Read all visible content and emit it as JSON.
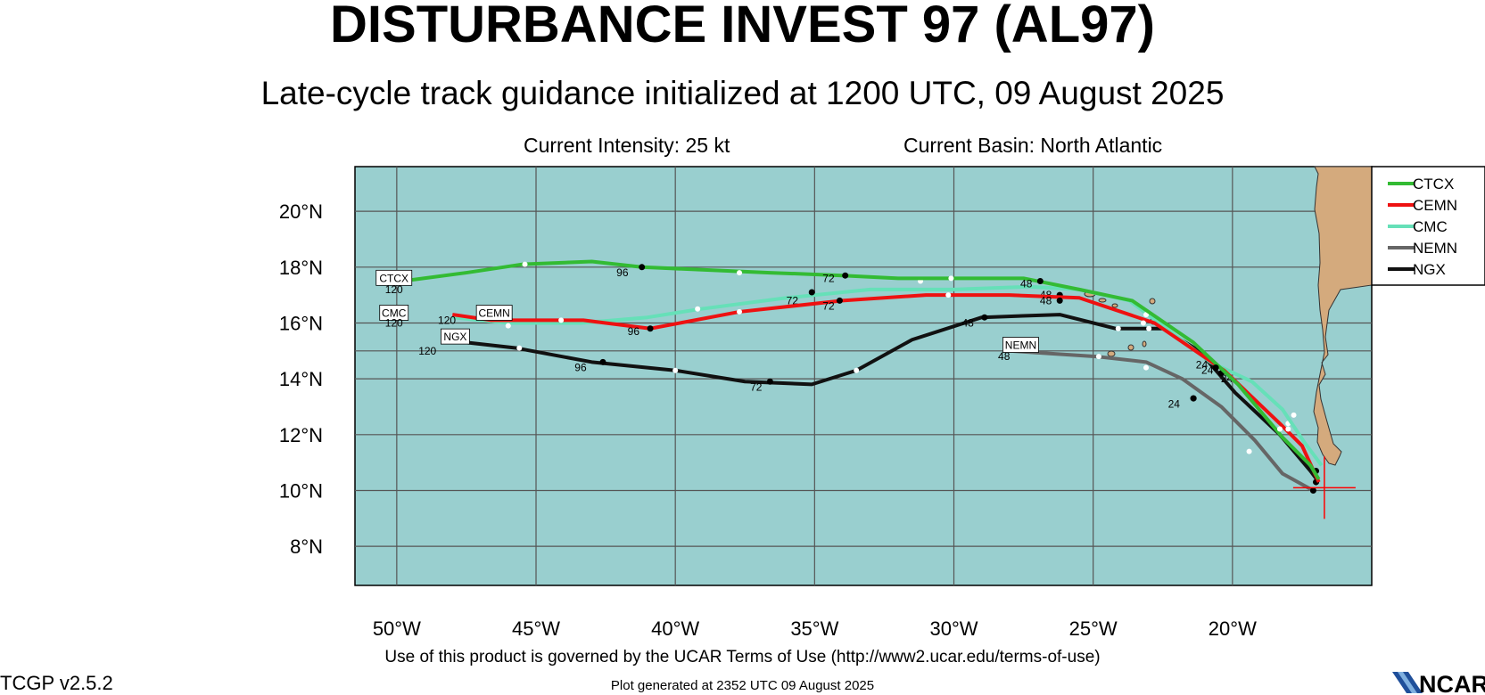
{
  "header": {
    "title": "DISTURBANCE INVEST 97 (AL97)",
    "subtitle": "Late-cycle track guidance initialized at 1200 UTC, 09 August 2025",
    "intensity": "Current Intensity: 25 kt",
    "basin": "Current Basin: North Atlantic"
  },
  "footer": {
    "terms": "Use of this product is governed by the UCAR Terms of Use (http://www2.ucar.edu/terms-of-use)",
    "generated": "Plot generated at 2352 UTC   09 August 2025",
    "version": "TCGP v2.5.2",
    "logo_text": "NCAR"
  },
  "colors": {
    "ocean": "#99cfcf",
    "land": "#d4aa7d",
    "grid": "#555555",
    "current_position_marker": "#ff0000"
  },
  "chart_data": {
    "type": "line",
    "map": true,
    "xlim": [
      -51.5,
      -15
    ],
    "ylim": [
      6.6,
      21.6
    ],
    "x_ticks": [
      -50,
      -45,
      -40,
      -35,
      -30,
      -25,
      -20
    ],
    "x_tick_labels": [
      "50°W",
      "45°W",
      "40°W",
      "35°W",
      "30°W",
      "25°W",
      "20°W"
    ],
    "y_ticks": [
      8,
      10,
      12,
      14,
      16,
      18,
      20
    ],
    "y_tick_labels": [
      "8°N",
      "10°N",
      "12°N",
      "14°N",
      "16°N",
      "18°N",
      "20°N"
    ],
    "grid": true,
    "legend_position": "top-right, outside plot",
    "current_position": {
      "lon": -16.7,
      "lat": 10.1
    },
    "series": [
      {
        "name": "CTCX",
        "color": "#33bb33",
        "track": [
          [
            -16.9,
            10.4
          ],
          [
            -17.2,
            10.9
          ],
          [
            -18.2,
            11.9
          ],
          [
            -19.8,
            13.8
          ],
          [
            -21.4,
            15.3
          ],
          [
            -23.6,
            16.8
          ],
          [
            -25.5,
            17.2
          ],
          [
            -27.5,
            17.6
          ],
          [
            -30,
            17.6
          ],
          [
            -32,
            17.6
          ],
          [
            -34,
            17.7
          ],
          [
            -36.6,
            17.8
          ],
          [
            -41.2,
            18.0
          ],
          [
            -43,
            18.2
          ],
          [
            -45.5,
            18.1
          ],
          [
            -47.5,
            17.8
          ],
          [
            -49.8,
            17.5
          ]
        ],
        "labels": [
          {
            "text": "CTCX",
            "lon": -50.1,
            "lat": 17.6,
            "box": true
          },
          {
            "text": "120",
            "lon": -50.1,
            "lat": 17.2
          },
          {
            "text": "96",
            "lon": -41.9,
            "lat": 17.8
          },
          {
            "text": "72",
            "lon": -34.5,
            "lat": 17.6
          },
          {
            "text": "48",
            "lon": -27.4,
            "lat": 17.4
          },
          {
            "text": "24",
            "lon": -21.1,
            "lat": 14.5
          }
        ],
        "daily_points": [
          [
            -41.2,
            18.0
          ],
          [
            -33.9,
            17.7
          ],
          [
            -26.9,
            17.5
          ],
          [
            -20.6,
            14.4
          ]
        ],
        "half_day_points": [
          [
            -45.4,
            18.1
          ],
          [
            -37.7,
            17.8
          ],
          [
            -30.1,
            17.6
          ],
          [
            -23.2,
            16.0
          ],
          [
            -18.3,
            12.2
          ]
        ]
      },
      {
        "name": "CEMN",
        "color": "#ee1111",
        "track": [
          [
            -16.9,
            10.3
          ],
          [
            -17.5,
            11.6
          ],
          [
            -18.3,
            12.4
          ],
          [
            -20.3,
            14.3
          ],
          [
            -22.8,
            16.0
          ],
          [
            -25.5,
            16.9
          ],
          [
            -28,
            17.0
          ],
          [
            -31,
            17.0
          ],
          [
            -34,
            16.8
          ],
          [
            -37.7,
            16.4
          ],
          [
            -40.9,
            15.8
          ],
          [
            -43.3,
            16.1
          ],
          [
            -46.6,
            16.1
          ],
          [
            -48,
            16.3
          ]
        ],
        "labels": [
          {
            "text": "CEMN",
            "lon": -46.5,
            "lat": 16.35,
            "box": true
          },
          {
            "text": "120",
            "lon": -48.2,
            "lat": 16.1
          },
          {
            "text": "96",
            "lon": -41.5,
            "lat": 15.7
          },
          {
            "text": "72",
            "lon": -34.5,
            "lat": 16.6
          },
          {
            "text": "48",
            "lon": -26.7,
            "lat": 16.8
          },
          {
            "text": "24",
            "lon": -20.9,
            "lat": 14.3
          }
        ],
        "daily_points": [
          [
            -40.9,
            15.8
          ],
          [
            -34.1,
            16.8
          ],
          [
            -26.2,
            16.8
          ],
          [
            -20.4,
            14.2
          ]
        ],
        "half_day_points": [
          [
            -44.1,
            16.1
          ],
          [
            -37.7,
            16.4
          ],
          [
            -30.2,
            17.0
          ],
          [
            -23.0,
            15.8
          ],
          [
            -18.0,
            12.2
          ]
        ]
      },
      {
        "name": "CMC",
        "color": "#66e0b8",
        "track": [
          [
            -16.8,
            10.9
          ],
          [
            -17.4,
            11.7
          ],
          [
            -18.2,
            12.9
          ],
          [
            -19.3,
            13.9
          ],
          [
            -20.8,
            14.6
          ],
          [
            -22.5,
            15.9
          ],
          [
            -23.7,
            16.8
          ],
          [
            -25.5,
            17.2
          ],
          [
            -27.3,
            17.3
          ],
          [
            -30,
            17.2
          ],
          [
            -33,
            17.2
          ],
          [
            -36,
            16.9
          ],
          [
            -39.1,
            16.5
          ],
          [
            -41,
            16.2
          ],
          [
            -43.4,
            16.0
          ],
          [
            -46,
            16.0
          ],
          [
            -48,
            16.2
          ]
        ],
        "labels": [
          {
            "text": "CMC",
            "lon": -50.1,
            "lat": 16.35,
            "box": true
          },
          {
            "text": "120",
            "lon": -50.1,
            "lat": 16.0
          },
          {
            "text": "72",
            "lon": -35.8,
            "lat": 16.8
          },
          {
            "text": "48",
            "lon": -26.7,
            "lat": 17.0
          },
          {
            "text": "24",
            "lon": -20.2,
            "lat": 14.0
          }
        ],
        "daily_points": [
          [
            -35.1,
            17.1
          ],
          [
            -26.2,
            17.0
          ],
          [
            -17.0,
            10.7
          ]
        ],
        "half_day_points": [
          [
            -46.0,
            15.9
          ],
          [
            -39.2,
            16.5
          ],
          [
            -31.2,
            17.5
          ],
          [
            -23.1,
            16.3
          ],
          [
            -17.8,
            12.7
          ]
        ]
      },
      {
        "name": "NEMN",
        "color": "#666666",
        "track": [
          [
            -17.1,
            10.0
          ],
          [
            -18.2,
            10.6
          ],
          [
            -19.2,
            11.8
          ],
          [
            -20.4,
            13.0
          ],
          [
            -21.8,
            14.0
          ],
          [
            -23.1,
            14.6
          ],
          [
            -24.9,
            14.8
          ],
          [
            -26.5,
            14.9
          ],
          [
            -28,
            15.0
          ]
        ],
        "labels": [
          {
            "text": "NEMN",
            "lon": -27.6,
            "lat": 15.2,
            "box": true
          },
          {
            "text": "48",
            "lon": -28.2,
            "lat": 14.8
          },
          {
            "text": "24",
            "lon": -22.1,
            "lat": 13.1
          }
        ],
        "daily_points": [
          [
            -21.4,
            13.3
          ],
          [
            -17.1,
            10.0
          ]
        ],
        "half_day_points": [
          [
            -24.8,
            14.8
          ],
          [
            -23.1,
            14.4
          ],
          [
            -19.4,
            11.4
          ]
        ]
      },
      {
        "name": "NGX",
        "color": "#111111",
        "track": [
          [
            -16.9,
            10.3
          ],
          [
            -17.2,
            10.7
          ],
          [
            -18.3,
            12.0
          ],
          [
            -19.9,
            13.5
          ],
          [
            -21.2,
            15.0
          ],
          [
            -22.5,
            15.8
          ],
          [
            -24.2,
            15.8
          ],
          [
            -26.2,
            16.3
          ],
          [
            -29,
            16.2
          ],
          [
            -31.5,
            15.4
          ],
          [
            -33.5,
            14.3
          ],
          [
            -35.1,
            13.8
          ],
          [
            -37.5,
            13.9
          ],
          [
            -40,
            14.3
          ],
          [
            -43,
            14.6
          ],
          [
            -45.7,
            15.1
          ],
          [
            -47.5,
            15.3
          ]
        ],
        "labels": [
          {
            "text": "NGX",
            "lon": -47.9,
            "lat": 15.5,
            "box": true
          },
          {
            "text": "120",
            "lon": -48.9,
            "lat": 15.0
          },
          {
            "text": "96",
            "lon": -43.4,
            "lat": 14.4
          },
          {
            "text": "72",
            "lon": -37.1,
            "lat": 13.7
          },
          {
            "text": "48",
            "lon": -29.5,
            "lat": 16.0
          }
        ],
        "daily_points": [
          [
            -42.6,
            14.6
          ],
          [
            -36.6,
            13.9
          ],
          [
            -28.9,
            16.2
          ],
          [
            -21.4,
            13.3
          ],
          [
            -17.0,
            10.3
          ]
        ],
        "half_day_points": [
          [
            -45.6,
            15.1
          ],
          [
            -40.0,
            14.3
          ],
          [
            -33.5,
            14.3
          ],
          [
            -24.1,
            15.8
          ],
          [
            -18.0,
            12.4
          ]
        ]
      }
    ]
  }
}
